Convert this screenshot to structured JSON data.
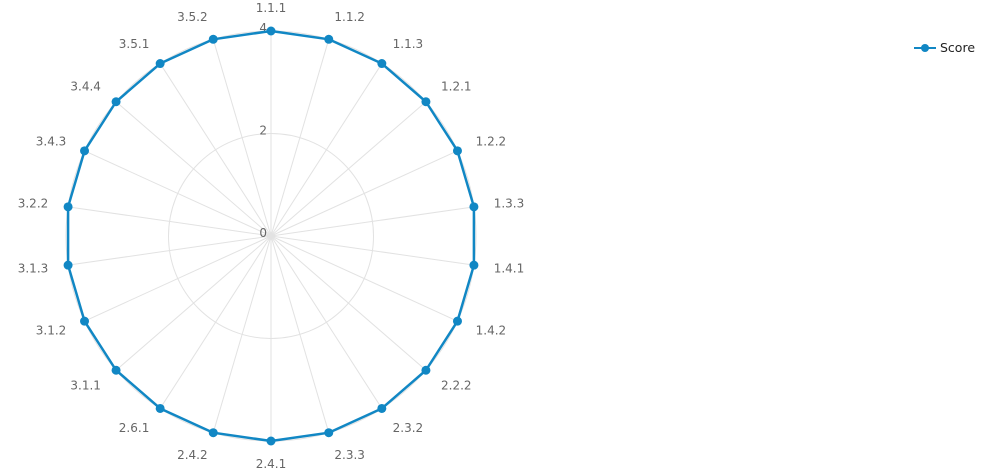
{
  "chart_data": {
    "type": "radar",
    "categories": [
      "1.1.1",
      "1.1.2",
      "1.1.3",
      "1.2.1",
      "1.2.2",
      "1.3.3",
      "1.4.1",
      "1.4.2",
      "2.2.2",
      "2.3.2",
      "2.3.3",
      "2.4.1",
      "2.4.2",
      "2.6.1",
      "3.1.1",
      "3.1.2",
      "3.1.3",
      "3.2.2",
      "3.4.3",
      "3.4.4",
      "3.5.1",
      "3.5.2"
    ],
    "series": [
      {
        "name": "Score",
        "values": [
          4,
          4,
          4,
          4,
          4,
          4,
          4,
          4,
          4,
          4,
          4,
          4,
          4,
          4,
          4,
          4,
          4,
          4,
          4,
          4,
          4,
          4
        ],
        "color": "#1187c4"
      }
    ],
    "rlim": [
      0,
      4
    ],
    "rticks": [
      "0",
      "2",
      "4"
    ],
    "grid": true,
    "legend_position": "top-right"
  }
}
